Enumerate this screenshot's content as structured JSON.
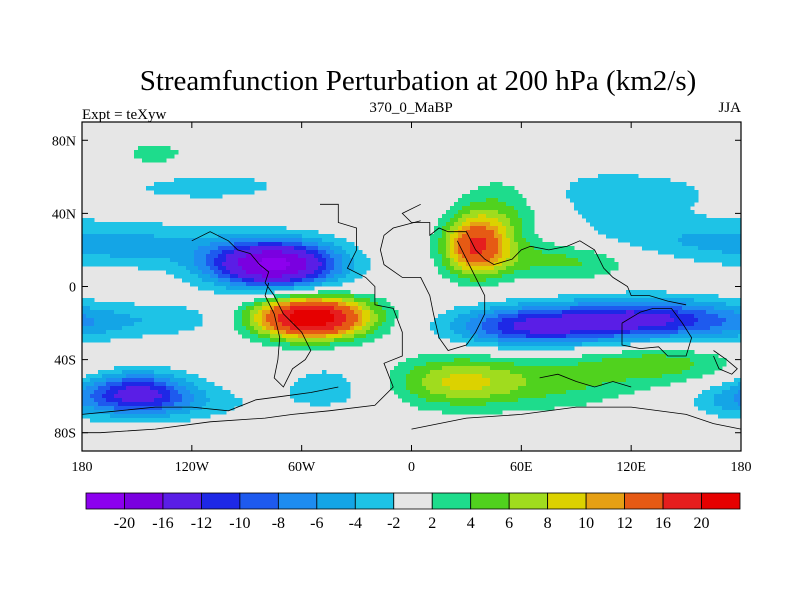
{
  "chart_data": {
    "type": "heatmap",
    "title": "Streamfunction Perturbation at 200 hPa (km2/s)",
    "left_label": "Expt = teXyw",
    "center_label": "370_0_MaBP",
    "right_label": "JJA",
    "xlim": [
      -180,
      180
    ],
    "ylim": [
      -90,
      90
    ],
    "x_ticks": [
      {
        "value": -180,
        "label": "180"
      },
      {
        "value": -120,
        "label": "120W"
      },
      {
        "value": -60,
        "label": "60W"
      },
      {
        "value": 0,
        "label": "0"
      },
      {
        "value": 60,
        "label": "60E"
      },
      {
        "value": 120,
        "label": "120E"
      },
      {
        "value": 180,
        "label": "180"
      }
    ],
    "y_ticks": [
      {
        "value": 80,
        "label": "80N"
      },
      {
        "value": 40,
        "label": "40N"
      },
      {
        "value": 0,
        "label": "0"
      },
      {
        "value": -40,
        "label": "40S"
      },
      {
        "value": -80,
        "label": "80S"
      }
    ],
    "levels": [
      -20,
      -16,
      -12,
      -10,
      -8,
      -6,
      -4,
      -2,
      2,
      4,
      6,
      8,
      10,
      12,
      16,
      20
    ],
    "level_labels": [
      "-20",
      "-16",
      "-12",
      "-10",
      "-8",
      "-6",
      "-4",
      "-2",
      "2",
      "4",
      "6",
      "8",
      "10",
      "12",
      "16",
      "20"
    ],
    "colors": [
      "#8c00ee",
      "#7a00e0",
      "#5a1ee6",
      "#1e28e6",
      "#1e5aee",
      "#1e8cf0",
      "#14a5e6",
      "#1ec3e6",
      "#e6e6e6",
      "#1edc8c",
      "#50d21e",
      "#a0dc1e",
      "#dcd200",
      "#e6a014",
      "#e65a14",
      "#e61e1e",
      "#e60000"
    ],
    "blobs": [
      {
        "lon": -75,
        "lat": 12,
        "value": -21,
        "sx": 24,
        "sy": 9
      },
      {
        "lon": -150,
        "lat": 22,
        "value": -4,
        "sx": 40,
        "sy": 9
      },
      {
        "lon": -110,
        "lat": 55,
        "value": -2.5,
        "sx": 45,
        "sy": 8
      },
      {
        "lon": -130,
        "lat": -18,
        "value": -3,
        "sx": 30,
        "sy": 7
      },
      {
        "lon": -55,
        "lat": -17,
        "value": 24,
        "sx": 22,
        "sy": 8
      },
      {
        "lon": -150,
        "lat": -58,
        "value": -12,
        "sx": 20,
        "sy": 8
      },
      {
        "lon": -130,
        "lat": -64,
        "value": -3,
        "sx": 35,
        "sy": 7
      },
      {
        "lon": 35,
        "lat": 22,
        "value": 15,
        "sx": 12,
        "sy": 11
      },
      {
        "lon": 50,
        "lat": 40,
        "value": 5,
        "sx": 18,
        "sy": 16
      },
      {
        "lon": 85,
        "lat": 15,
        "value": 5,
        "sx": 28,
        "sy": 8
      },
      {
        "lon": 65,
        "lat": -22,
        "value": -12,
        "sx": 30,
        "sy": 8
      },
      {
        "lon": 125,
        "lat": -18,
        "value": -12,
        "sx": 30,
        "sy": 8
      },
      {
        "lon": 175,
        "lat": -20,
        "value": -4,
        "sx": 25,
        "sy": 8
      },
      {
        "lon": 25,
        "lat": -52,
        "value": 8,
        "sx": 25,
        "sy": 10
      },
      {
        "lon": 80,
        "lat": -52,
        "value": 4,
        "sx": 30,
        "sy": 11
      },
      {
        "lon": 135,
        "lat": -42,
        "value": 5,
        "sx": 30,
        "sy": 8
      },
      {
        "lon": 170,
        "lat": -62,
        "value": -3,
        "sx": 15,
        "sy": 7
      },
      {
        "lon": -45,
        "lat": -55,
        "value": -3,
        "sx": 20,
        "sy": 10
      },
      {
        "lon": 110,
        "lat": 50,
        "value": -3,
        "sx": 45,
        "sy": 12
      },
      {
        "lon": 135,
        "lat": 25,
        "value": -3,
        "sx": 50,
        "sy": 8
      },
      {
        "lon": -140,
        "lat": 72,
        "value": 3,
        "sx": 15,
        "sy": 6
      }
    ],
    "coastlines": [
      [
        [
          -50,
          45
        ],
        [
          -40,
          45
        ],
        [
          -40,
          35
        ],
        [
          -30,
          32
        ],
        [
          -30,
          20
        ],
        [
          -35,
          10
        ],
        [
          -25,
          5
        ],
        [
          -20,
          0
        ],
        [
          -20,
          -10
        ],
        [
          -10,
          -12
        ],
        [
          -5,
          -25
        ],
        [
          -5,
          -38
        ],
        [
          -15,
          -42
        ],
        [
          -10,
          -55
        ],
        [
          -20,
          -65
        ],
        [
          -45,
          -68
        ],
        [
          -65,
          -70
        ],
        [
          -80,
          -72
        ],
        [
          -110,
          -74
        ],
        [
          -140,
          -78
        ],
        [
          -170,
          -80
        ],
        [
          -180,
          -80
        ]
      ],
      [
        [
          -180,
          -70
        ],
        [
          -160,
          -68
        ],
        [
          -140,
          -66
        ],
        [
          -120,
          -66
        ],
        [
          -100,
          -68
        ],
        [
          -85,
          -62
        ],
        [
          -70,
          -60
        ],
        [
          -55,
          -58
        ],
        [
          -40,
          -55
        ]
      ],
      [
        [
          5,
          45
        ],
        [
          -5,
          40
        ],
        [
          0,
          35
        ],
        [
          10,
          35
        ],
        [
          10,
          28
        ],
        [
          15,
          32
        ],
        [
          20,
          30
        ],
        [
          30,
          30
        ],
        [
          35,
          20
        ],
        [
          40,
          15
        ],
        [
          45,
          12
        ],
        [
          55,
          15
        ],
        [
          60,
          20
        ],
        [
          65,
          22
        ],
        [
          75,
          20
        ],
        [
          85,
          22
        ],
        [
          92,
          25
        ],
        [
          100,
          20
        ],
        [
          105,
          10
        ],
        [
          110,
          5
        ],
        [
          118,
          0
        ],
        [
          120,
          -5
        ],
        [
          130,
          -5
        ],
        [
          140,
          -8
        ],
        [
          150,
          -10
        ]
      ],
      [
        [
          25,
          25
        ],
        [
          30,
          15
        ],
        [
          35,
          5
        ],
        [
          40,
          -5
        ],
        [
          40,
          -15
        ],
        [
          35,
          -25
        ],
        [
          30,
          -32
        ],
        [
          20,
          -35
        ],
        [
          15,
          -28
        ],
        [
          12,
          -15
        ],
        [
          10,
          -5
        ],
        [
          5,
          5
        ],
        [
          -5,
          5
        ],
        [
          -15,
          12
        ],
        [
          -17,
          20
        ],
        [
          -15,
          28
        ],
        [
          -10,
          32
        ],
        [
          5,
          36
        ]
      ],
      [
        [
          115,
          -20
        ],
        [
          115,
          -32
        ],
        [
          125,
          -34
        ],
        [
          135,
          -33
        ],
        [
          140,
          -38
        ],
        [
          150,
          -38
        ],
        [
          153,
          -28
        ],
        [
          148,
          -20
        ],
        [
          142,
          -12
        ],
        [
          132,
          -12
        ],
        [
          125,
          -14
        ],
        [
          115,
          -20
        ]
      ],
      [
        [
          0,
          -78
        ],
        [
          30,
          -72
        ],
        [
          60,
          -70
        ],
        [
          90,
          -66
        ],
        [
          120,
          -66
        ],
        [
          150,
          -70
        ],
        [
          165,
          -75
        ],
        [
          180,
          -78
        ]
      ],
      [
        [
          70,
          -50
        ],
        [
          80,
          -48
        ],
        [
          90,
          -52
        ],
        [
          100,
          -55
        ],
        [
          110,
          -52
        ],
        [
          120,
          -55
        ]
      ],
      [
        [
          165,
          -35
        ],
        [
          172,
          -40
        ],
        [
          178,
          -45
        ],
        [
          175,
          -48
        ],
        [
          168,
          -45
        ],
        [
          165,
          -38
        ]
      ],
      [
        [
          -120,
          25
        ],
        [
          -110,
          30
        ],
        [
          -100,
          25
        ],
        [
          -95,
          20
        ],
        [
          -88,
          18
        ],
        [
          -83,
          12
        ],
        [
          -78,
          8
        ],
        [
          -80,
          2
        ],
        [
          -75,
          -5
        ],
        [
          -70,
          -15
        ],
        [
          -60,
          -25
        ],
        [
          -55,
          -35
        ],
        [
          -58,
          -40
        ],
        [
          -65,
          -45
        ],
        [
          -70,
          -55
        ],
        [
          -75,
          -50
        ],
        [
          -73,
          -40
        ],
        [
          -72,
          -28
        ],
        [
          -75,
          -15
        ],
        [
          -80,
          -5
        ],
        [
          -78,
          2
        ]
      ]
    ]
  }
}
